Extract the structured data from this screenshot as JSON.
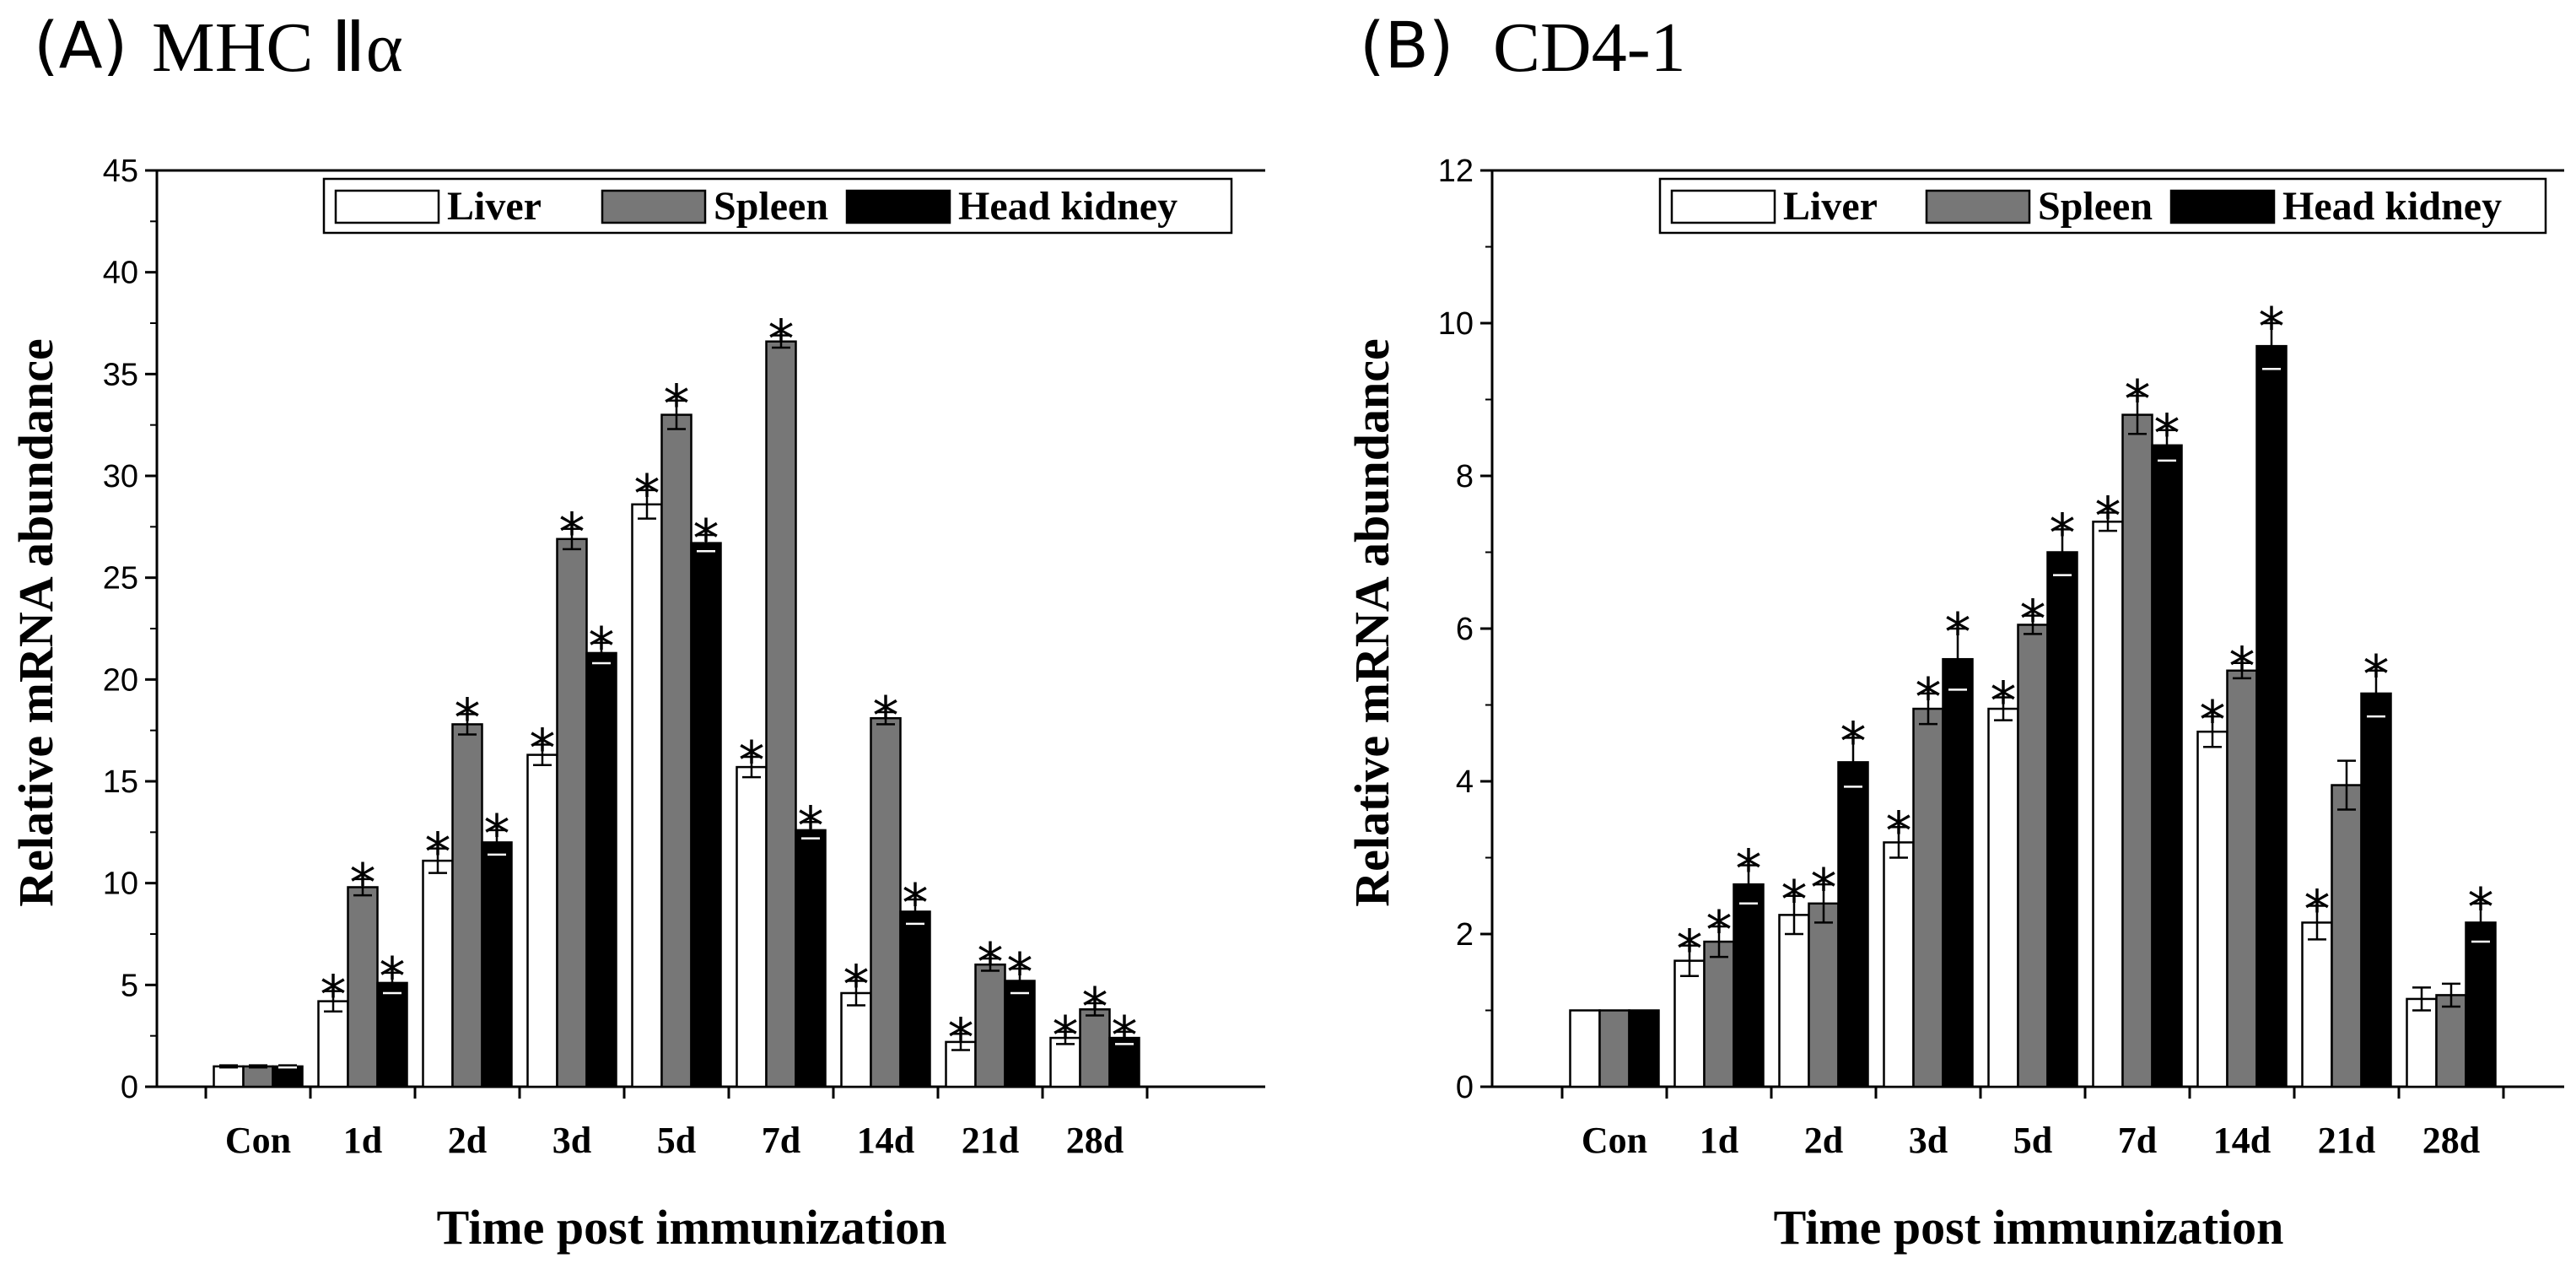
{
  "chart_data": [
    {
      "type": "bar",
      "panel_label": "(A)",
      "gene": "MHC Ⅱα",
      "title": "(A) MHC Ⅱα",
      "xlabel": "Time post immunization",
      "ylabel": "Relative mRNA abundance",
      "ylim": [
        0,
        45
      ],
      "yticks": [
        0,
        5,
        10,
        15,
        20,
        25,
        30,
        35,
        40,
        45
      ],
      "ytick_labels": [
        "0",
        "5",
        "10",
        "15",
        "20",
        "25",
        "30",
        "35",
        "40",
        "45"
      ],
      "categories": [
        "Con",
        "1d",
        "2d",
        "3d",
        "5d",
        "7d",
        "14d",
        "21d",
        "28d"
      ],
      "legend": {
        "position": "top-right",
        "entries": [
          "Liver",
          "Spleen",
          "Head kidney"
        ]
      },
      "series": [
        {
          "name": "Liver",
          "color": "#ffffff",
          "values": [
            1.0,
            4.2,
            11.1,
            16.3,
            28.6,
            15.7,
            4.6,
            2.2,
            2.4
          ],
          "errors": [
            0.05,
            0.5,
            0.6,
            0.5,
            0.7,
            0.5,
            0.6,
            0.4,
            0.3
          ],
          "significant": [
            false,
            true,
            true,
            true,
            true,
            true,
            true,
            true,
            true
          ]
        },
        {
          "name": "Spleen",
          "color": "#777777",
          "values": [
            1.0,
            9.8,
            17.8,
            26.9,
            33.0,
            36.6,
            18.1,
            6.0,
            3.8
          ],
          "errors": [
            0.05,
            0.4,
            0.5,
            0.5,
            0.7,
            0.3,
            0.3,
            0.3,
            0.3
          ],
          "significant": [
            false,
            true,
            true,
            true,
            true,
            true,
            true,
            true,
            true
          ]
        },
        {
          "name": "Head kidney",
          "color": "#000000",
          "values": [
            1.0,
            5.1,
            12.0,
            21.3,
            26.7,
            12.6,
            8.6,
            5.2,
            2.4
          ],
          "errors": [
            0.05,
            0.5,
            0.6,
            0.5,
            0.4,
            0.4,
            0.6,
            0.6,
            0.3
          ],
          "significant": [
            false,
            true,
            true,
            true,
            true,
            true,
            true,
            true,
            true
          ]
        }
      ]
    },
    {
      "type": "bar",
      "panel_label": "(B)",
      "gene": "CD4-1",
      "title": "(B) CD4-1",
      "xlabel": "Time post immunization",
      "ylabel": "Relative mRNA abundance",
      "ylim": [
        0,
        12
      ],
      "yticks": [
        0,
        2,
        4,
        6,
        8,
        10,
        12
      ],
      "ytick_labels": [
        "0",
        "2",
        "4",
        "6",
        "8",
        "10",
        "12"
      ],
      "categories": [
        "Con",
        "1d",
        "2d",
        "3d",
        "5d",
        "7d",
        "14d",
        "21d",
        "28d"
      ],
      "legend": {
        "position": "top-right",
        "entries": [
          "Liver",
          "Spleen",
          "Head kidney"
        ]
      },
      "series": [
        {
          "name": "Liver",
          "color": "#ffffff",
          "values": [
            1.0,
            1.65,
            2.25,
            3.2,
            4.95,
            7.4,
            4.65,
            2.15,
            1.15
          ],
          "errors": [
            0.02,
            0.2,
            0.25,
            0.2,
            0.15,
            0.12,
            0.2,
            0.22,
            0.15
          ],
          "significant": [
            false,
            true,
            true,
            true,
            true,
            true,
            true,
            true,
            false
          ]
        },
        {
          "name": "Spleen",
          "color": "#777777",
          "values": [
            1.0,
            1.9,
            2.4,
            4.95,
            6.05,
            8.8,
            5.45,
            3.95,
            1.2
          ],
          "errors": [
            0.02,
            0.2,
            0.25,
            0.2,
            0.12,
            0.25,
            0.1,
            0.32,
            0.15
          ],
          "significant": [
            false,
            true,
            true,
            true,
            true,
            true,
            true,
            false,
            false
          ]
        },
        {
          "name": "Head kidney",
          "color": "#000000",
          "values": [
            1.0,
            2.65,
            4.25,
            5.6,
            7.0,
            8.4,
            9.7,
            5.15,
            2.15
          ],
          "errors": [
            0.02,
            0.25,
            0.32,
            0.4,
            0.3,
            0.2,
            0.3,
            0.3,
            0.25
          ],
          "significant": [
            false,
            true,
            true,
            true,
            true,
            true,
            true,
            true,
            true
          ]
        }
      ]
    }
  ]
}
